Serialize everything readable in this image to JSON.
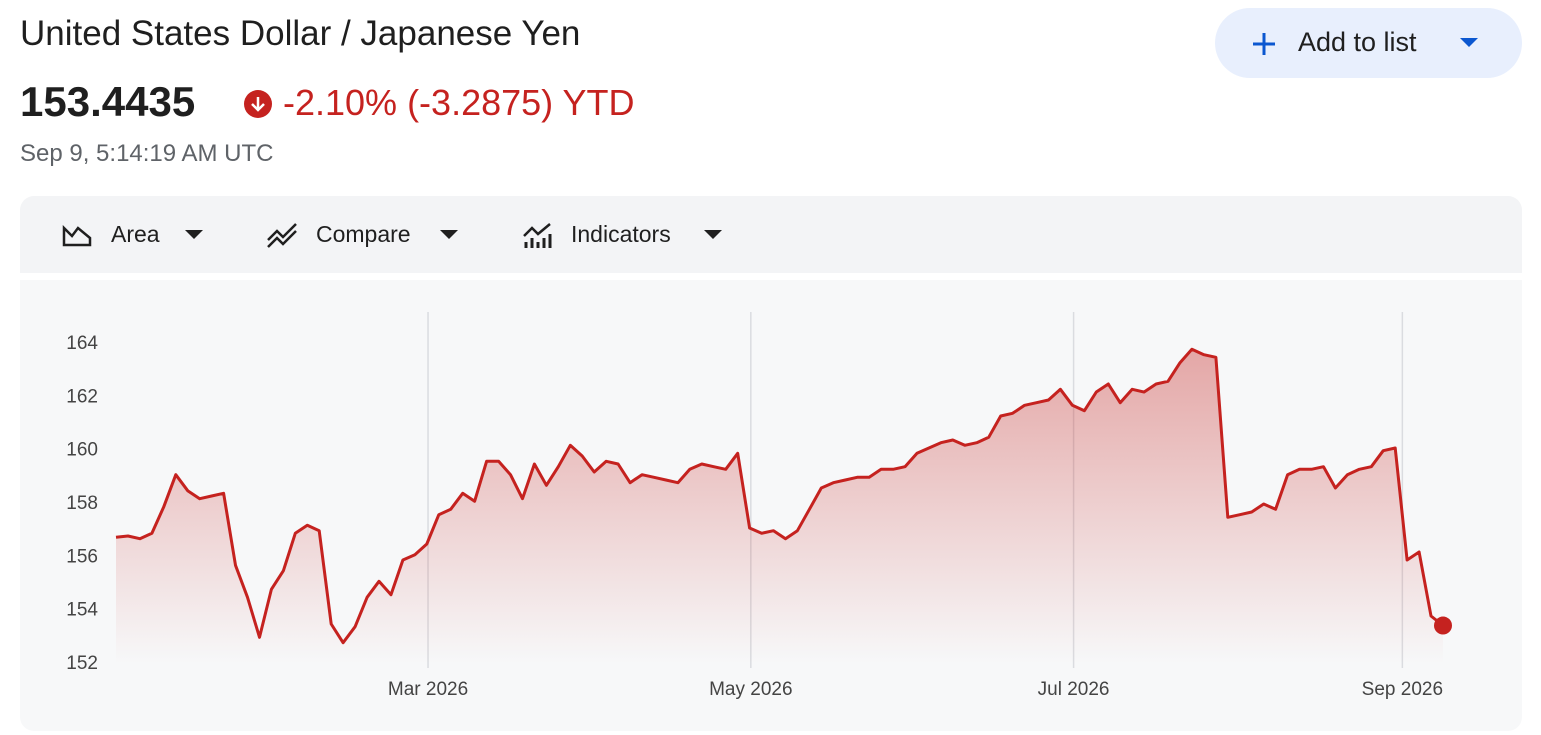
{
  "header": {
    "title": "United States Dollar / Japanese Yen",
    "price": "153.4435",
    "change": "-2.10% (-3.2875) YTD",
    "timestamp": "Sep 9, 5:14:19 AM UTC",
    "button": "Add to list"
  },
  "toolbar": {
    "items": [
      "Area",
      "Compare",
      "Indicators"
    ]
  },
  "chart_data": {
    "type": "area",
    "color": "#c5221f",
    "xgrid": true,
    "values": [
      156.75,
      156.8,
      156.7,
      156.9,
      157.9,
      159.1,
      158.5,
      158.2,
      158.3,
      158.4,
      155.7,
      154.5,
      153.0,
      154.8,
      155.5,
      156.9,
      157.2,
      157.0,
      153.5,
      152.8,
      153.4,
      154.5,
      155.1,
      154.6,
      155.9,
      156.1,
      156.5,
      157.6,
      157.8,
      158.4,
      158.1,
      159.6,
      159.6,
      159.1,
      158.2,
      159.5,
      158.7,
      159.4,
      160.2,
      159.8,
      159.2,
      159.6,
      159.5,
      158.8,
      159.1,
      159.0,
      158.9,
      158.8,
      159.3,
      159.5,
      159.4,
      159.3,
      159.9,
      157.1,
      156.9,
      157.0,
      156.7,
      157.0,
      157.8,
      158.6,
      158.8,
      158.9,
      159.0,
      159.0,
      159.3,
      159.3,
      159.4,
      159.9,
      160.1,
      160.3,
      160.4,
      160.2,
      160.3,
      160.5,
      161.3,
      161.4,
      161.7,
      161.8,
      161.9,
      162.3,
      161.7,
      161.5,
      162.2,
      162.5,
      161.8,
      162.3,
      162.2,
      162.5,
      162.6,
      163.3,
      163.8,
      163.6,
      163.5,
      157.5,
      157.6,
      157.7,
      158.0,
      157.8,
      159.1,
      159.3,
      159.3,
      159.4,
      158.6,
      159.1,
      159.3,
      159.4,
      160.0,
      160.1,
      155.9,
      156.2,
      153.8,
      153.4435
    ],
    "xlim": [
      0,
      111
    ],
    "xticks": [
      {
        "value": 26.1,
        "label": "Mar 2026"
      },
      {
        "value": 53.1,
        "label": "May 2026"
      },
      {
        "value": 80.1,
        "label": "Jul 2026"
      },
      {
        "value": 107.6,
        "label": "Sep 2026"
      }
    ],
    "ylim": [
      152,
      165.2
    ],
    "yticks": [
      152,
      154,
      156,
      158,
      160,
      162,
      164
    ]
  }
}
